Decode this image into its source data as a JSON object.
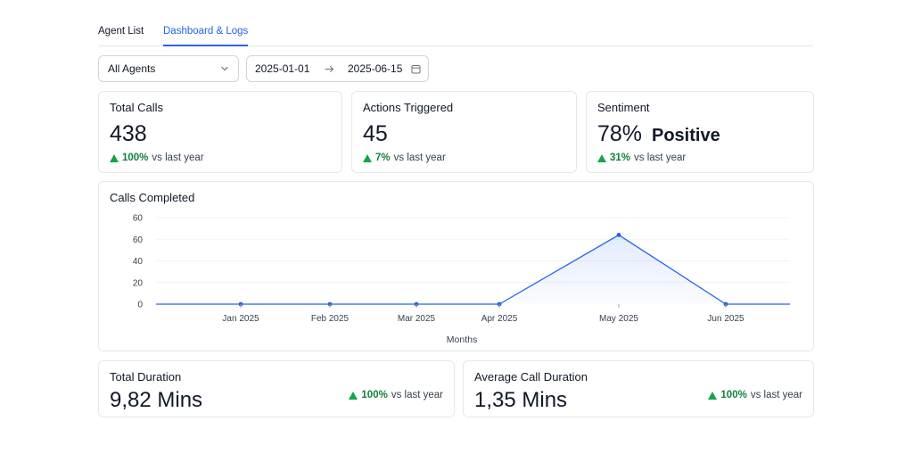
{
  "tabs": {
    "agent_list": "Agent List",
    "dashboard": "Dashboard & Logs"
  },
  "filters": {
    "agent_select": "All Agents",
    "date_from": "2025-01-01",
    "date_to": "2025-06-15"
  },
  "stats": {
    "total_calls": {
      "title": "Total Calls",
      "value": "438",
      "change": "100%",
      "vs": "vs last year"
    },
    "actions": {
      "title": "Actions Triggered",
      "value": "45",
      "change": "7%",
      "vs": "vs last year"
    },
    "sentiment": {
      "title": "Sentiment",
      "value": "78%",
      "label": "Positive",
      "change": "31%",
      "vs": "vs last year"
    }
  },
  "durations": {
    "total": {
      "title": "Total Duration",
      "value": "9,82 Mins",
      "change": "100%",
      "vs": "vs last year"
    },
    "average": {
      "title": "Average Call Duration",
      "value": "1,35 Mins",
      "change": "100%",
      "vs": "vs last year"
    }
  },
  "colors": {
    "accent": "#2563eb",
    "positive": "#16a34a"
  },
  "chart_data": {
    "type": "area",
    "title": "Calls Completed",
    "xlabel": "Months",
    "ylabel": "",
    "ylim": [
      0,
      60
    ],
    "yticks": [
      "0",
      "20",
      "40",
      "60",
      "60"
    ],
    "categories": [
      "Jan 2025",
      "Feb 2025",
      "Mar 2025",
      "Apr 2025",
      "May 2025",
      "Jun 2025"
    ],
    "series": [
      {
        "name": "Calls Completed",
        "values": [
          0,
          0,
          0,
          0,
          64,
          0
        ]
      }
    ]
  }
}
